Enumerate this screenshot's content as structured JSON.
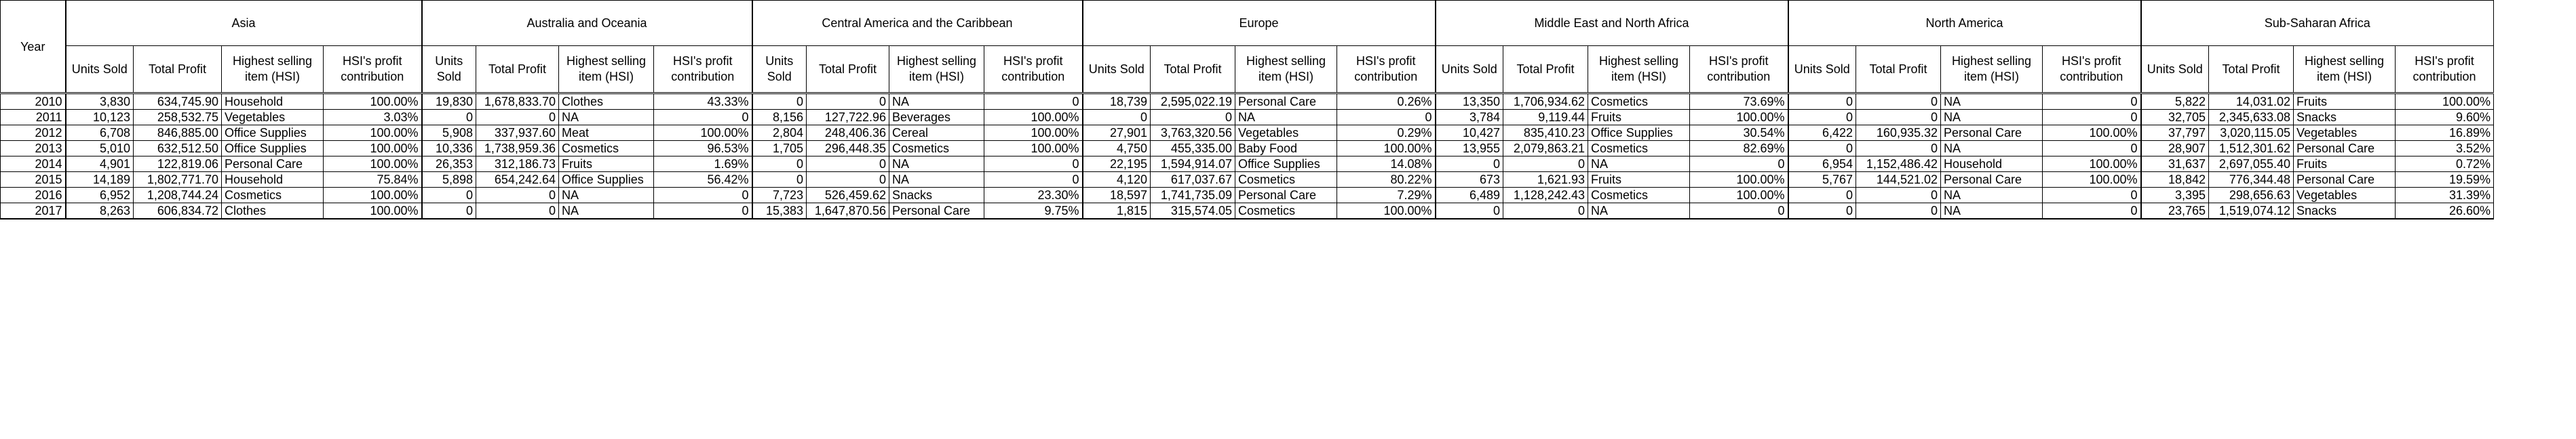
{
  "year_header": "Year",
  "regions": [
    "Asia",
    "Australia and Oceania",
    "Central America and the Caribbean",
    "Europe",
    "Middle East and North Africa",
    "North America",
    "Sub-Saharan Africa"
  ],
  "subheaders": [
    "Units Sold",
    "Total Profit",
    "Highest selling item (HSI)",
    "HSI's profit contribution"
  ],
  "rows": [
    {
      "year": "2010",
      "cells": [
        [
          "3,830",
          "634,745.90",
          "Household",
          "100.00%"
        ],
        [
          "19,830",
          "1,678,833.70",
          "Clothes",
          "43.33%"
        ],
        [
          "0",
          "0",
          "NA",
          "0"
        ],
        [
          "18,739",
          "2,595,022.19",
          "Personal Care",
          "0.26%"
        ],
        [
          "13,350",
          "1,706,934.62",
          "Cosmetics",
          "73.69%"
        ],
        [
          "0",
          "0",
          "NA",
          "0"
        ],
        [
          "5,822",
          "14,031.02",
          "Fruits",
          "100.00%"
        ]
      ]
    },
    {
      "year": "2011",
      "cells": [
        [
          "10,123",
          "258,532.75",
          "Vegetables",
          "3.03%"
        ],
        [
          "0",
          "0",
          "NA",
          "0"
        ],
        [
          "8,156",
          "127,722.96",
          "Beverages",
          "100.00%"
        ],
        [
          "0",
          "0",
          "NA",
          "0"
        ],
        [
          "3,784",
          "9,119.44",
          "Fruits",
          "100.00%"
        ],
        [
          "0",
          "0",
          "NA",
          "0"
        ],
        [
          "32,705",
          "2,345,633.08",
          "Snacks",
          "9.60%"
        ]
      ]
    },
    {
      "year": "2012",
      "cells": [
        [
          "6,708",
          "846,885.00",
          "Office Supplies",
          "100.00%"
        ],
        [
          "5,908",
          "337,937.60",
          "Meat",
          "100.00%"
        ],
        [
          "2,804",
          "248,406.36",
          "Cereal",
          "100.00%"
        ],
        [
          "27,901",
          "3,763,320.56",
          "Vegetables",
          "0.29%"
        ],
        [
          "10,427",
          "835,410.23",
          "Office Supplies",
          "30.54%"
        ],
        [
          "6,422",
          "160,935.32",
          "Personal Care",
          "100.00%"
        ],
        [
          "37,797",
          "3,020,115.05",
          "Vegetables",
          "16.89%"
        ]
      ]
    },
    {
      "year": "2013",
      "cells": [
        [
          "5,010",
          "632,512.50",
          "Office Supplies",
          "100.00%"
        ],
        [
          "10,336",
          "1,738,959.36",
          "Cosmetics",
          "96.53%"
        ],
        [
          "1,705",
          "296,448.35",
          "Cosmetics",
          "100.00%"
        ],
        [
          "4,750",
          "455,335.00",
          "Baby Food",
          "100.00%"
        ],
        [
          "13,955",
          "2,079,863.21",
          "Cosmetics",
          "82.69%"
        ],
        [
          "0",
          "0",
          "NA",
          "0"
        ],
        [
          "28,907",
          "1,512,301.62",
          "Personal Care",
          "3.52%"
        ]
      ]
    },
    {
      "year": "2014",
      "cells": [
        [
          "4,901",
          "122,819.06",
          "Personal Care",
          "100.00%"
        ],
        [
          "26,353",
          "312,186.73",
          "Fruits",
          "1.69%"
        ],
        [
          "0",
          "0",
          "NA",
          "0"
        ],
        [
          "22,195",
          "1,594,914.07",
          "Office Supplies",
          "14.08%"
        ],
        [
          "0",
          "0",
          "NA",
          "0"
        ],
        [
          "6,954",
          "1,152,486.42",
          "Household",
          "100.00%"
        ],
        [
          "31,637",
          "2,697,055.40",
          "Fruits",
          "0.72%"
        ]
      ]
    },
    {
      "year": "2015",
      "cells": [
        [
          "14,189",
          "1,802,771.70",
          "Household",
          "75.84%"
        ],
        [
          "5,898",
          "654,242.64",
          "Office Supplies",
          "56.42%"
        ],
        [
          "0",
          "0",
          "NA",
          "0"
        ],
        [
          "4,120",
          "617,037.67",
          "Cosmetics",
          "80.22%"
        ],
        [
          "673",
          "1,621.93",
          "Fruits",
          "100.00%"
        ],
        [
          "5,767",
          "144,521.02",
          "Personal Care",
          "100.00%"
        ],
        [
          "18,842",
          "776,344.48",
          "Personal Care",
          "19.59%"
        ]
      ]
    },
    {
      "year": "2016",
      "cells": [
        [
          "6,952",
          "1,208,744.24",
          "Cosmetics",
          "100.00%"
        ],
        [
          "0",
          "0",
          "NA",
          "0"
        ],
        [
          "7,723",
          "526,459.62",
          "Snacks",
          "23.30%"
        ],
        [
          "18,597",
          "1,741,735.09",
          "Personal Care",
          "7.29%"
        ],
        [
          "6,489",
          "1,128,242.43",
          "Cosmetics",
          "100.00%"
        ],
        [
          "0",
          "0",
          "NA",
          "0"
        ],
        [
          "3,395",
          "298,656.63",
          "Vegetables",
          "31.39%"
        ]
      ]
    },
    {
      "year": "2017",
      "cells": [
        [
          "8,263",
          "606,834.72",
          "Clothes",
          "100.00%"
        ],
        [
          "0",
          "0",
          "NA",
          "0"
        ],
        [
          "15,383",
          "1,647,870.56",
          "Personal Care",
          "9.75%"
        ],
        [
          "1,815",
          "315,574.05",
          "Cosmetics",
          "100.00%"
        ],
        [
          "0",
          "0",
          "NA",
          "0"
        ],
        [
          "0",
          "0",
          "NA",
          "0"
        ],
        [
          "23,765",
          "1,519,074.12",
          "Snacks",
          "26.60%"
        ]
      ]
    }
  ]
}
